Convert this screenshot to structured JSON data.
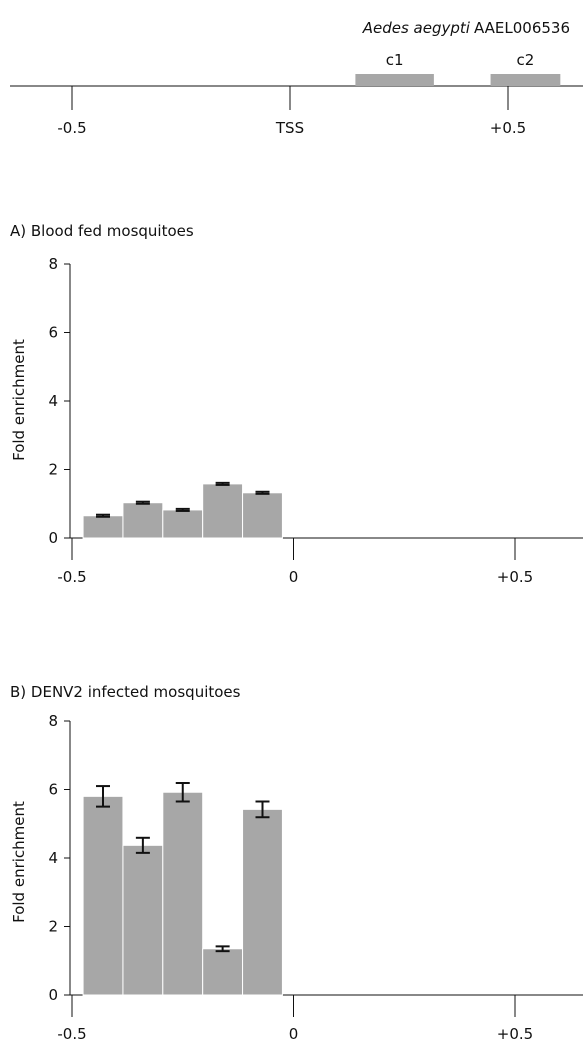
{
  "gene_map": {
    "species": "Aedes aegypti",
    "gene": "AAEL006536",
    "ticks": [
      {
        "label": "-0.5",
        "pos": -0.5
      },
      {
        "label": "TSS",
        "pos": 0
      },
      {
        "label": "+0.5",
        "pos": 0.5
      }
    ],
    "regions": [
      {
        "label": "c1",
        "start": 0.15,
        "end": 0.33
      },
      {
        "label": "c2",
        "start": 0.46,
        "end": 0.62
      }
    ],
    "bar_color": "#a7a7a7"
  },
  "chart_data": [
    {
      "type": "bar",
      "title": "A) Blood fed mosquitoes",
      "ylabel": "Fold enrichment",
      "ylim": [
        0,
        8
      ],
      "yticks": [
        "0",
        "2",
        "4",
        "6",
        "8"
      ],
      "xticks": [
        {
          "label": "-0.5",
          "pos": -0.5
        },
        {
          "label": "0",
          "pos": 0
        },
        {
          "label": "+0.5",
          "pos": 0.5
        }
      ],
      "xlim": [
        -0.52,
        0.62
      ],
      "bars": [
        {
          "x0": -0.475,
          "x1": -0.385,
          "value": 0.65,
          "error": 0.03
        },
        {
          "x0": -0.385,
          "x1": -0.295,
          "value": 1.03,
          "error": 0.03
        },
        {
          "x0": -0.295,
          "x1": -0.205,
          "value": 0.82,
          "error": 0.03
        },
        {
          "x0": -0.205,
          "x1": -0.115,
          "value": 1.58,
          "error": 0.03
        },
        {
          "x0": -0.115,
          "x1": -0.025,
          "value": 1.32,
          "error": 0.03
        }
      ],
      "bar_color": "#a7a7a7"
    },
    {
      "type": "bar",
      "title": "B) DENV2 infected mosquitoes",
      "ylabel": "Fold enrichment",
      "ylim": [
        0,
        8
      ],
      "yticks": [
        "0",
        "2",
        "4",
        "6",
        "8"
      ],
      "xticks": [
        {
          "label": "-0.5",
          "pos": -0.5
        },
        {
          "label": "0",
          "pos": 0
        },
        {
          "label": "+0.5",
          "pos": 0.5
        }
      ],
      "xlim": [
        -0.52,
        0.62
      ],
      "bars": [
        {
          "x0": -0.475,
          "x1": -0.385,
          "value": 5.8,
          "error": 0.3
        },
        {
          "x0": -0.385,
          "x1": -0.295,
          "value": 4.37,
          "error": 0.22
        },
        {
          "x0": -0.295,
          "x1": -0.205,
          "value": 5.92,
          "error": 0.27
        },
        {
          "x0": -0.205,
          "x1": -0.115,
          "value": 1.35,
          "error": 0.07
        },
        {
          "x0": -0.115,
          "x1": -0.025,
          "value": 5.42,
          "error": 0.23
        }
      ],
      "bar_color": "#a7a7a7"
    }
  ]
}
